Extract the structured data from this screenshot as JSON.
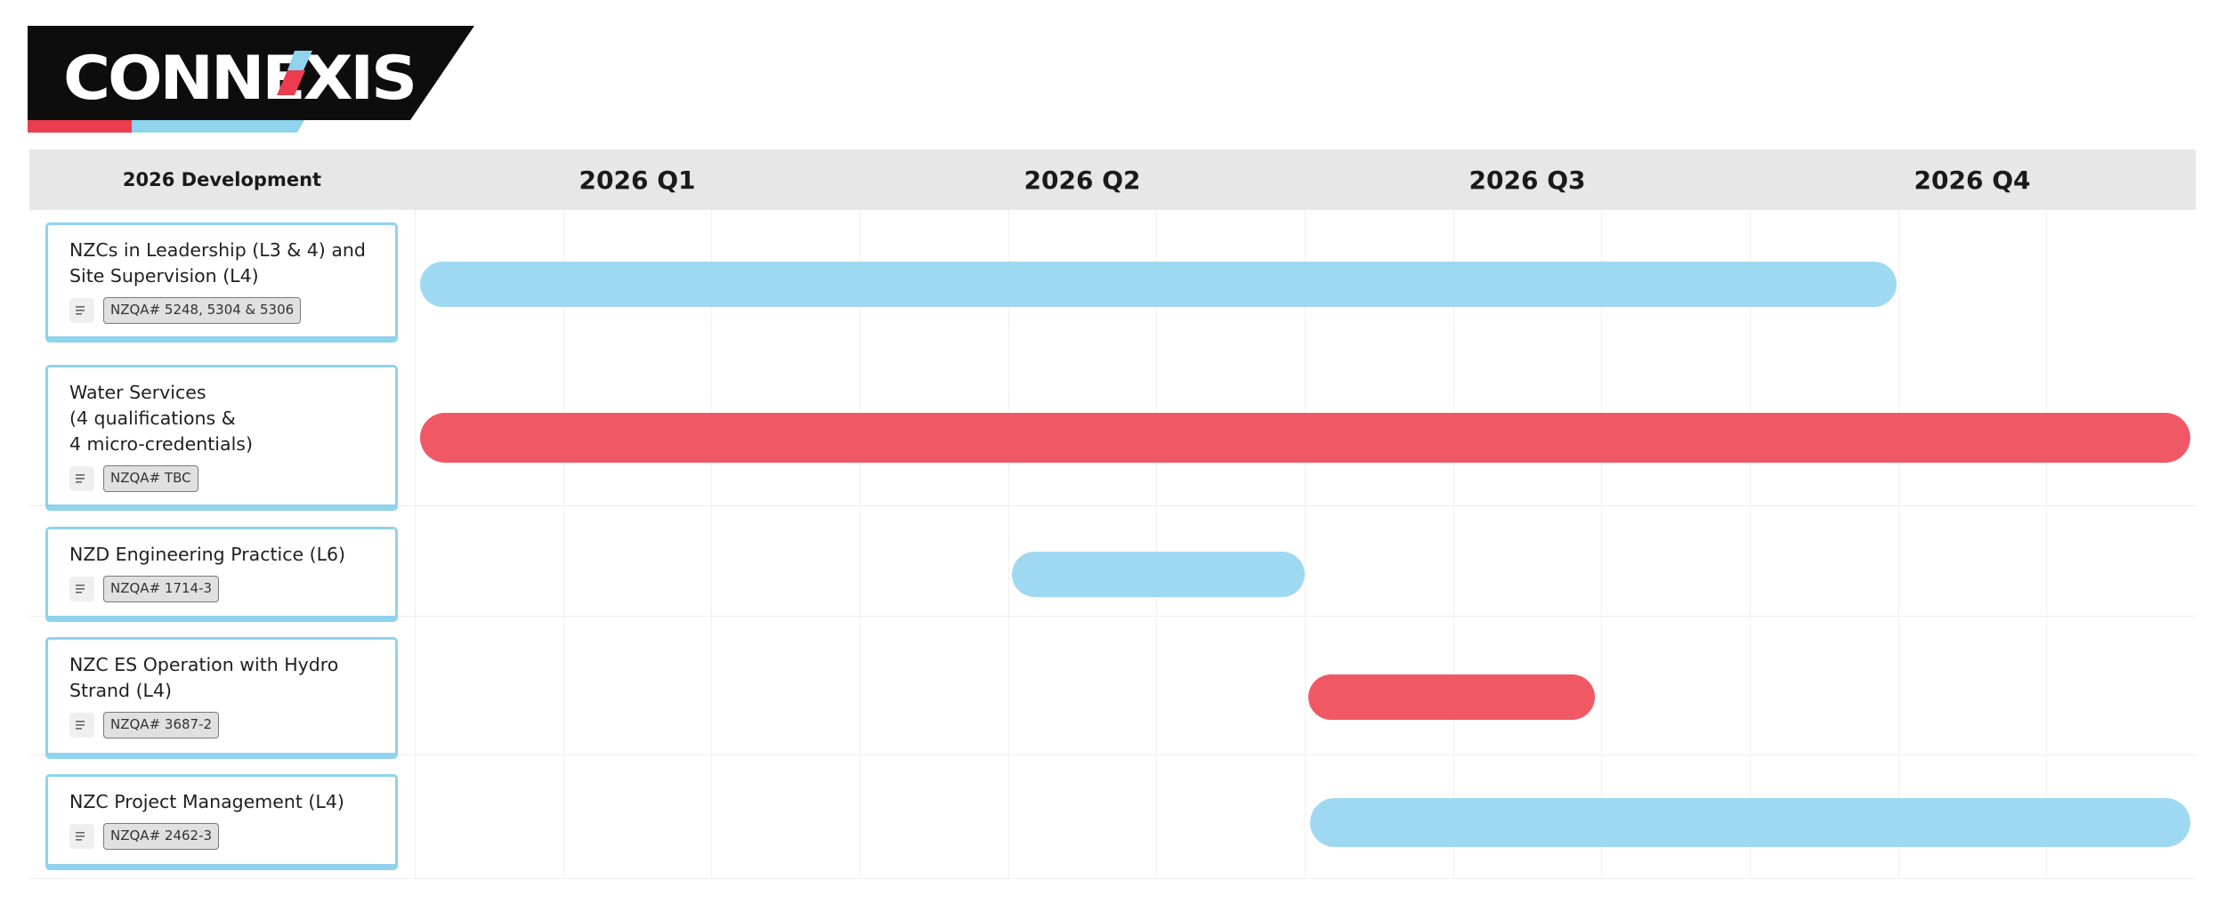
{
  "logo": {
    "text": "CONNEXIS"
  },
  "board": {
    "header_label": "2026 Development",
    "quarters": [
      "2026 Q1",
      "2026 Q2",
      "2026 Q3",
      "2026 Q4"
    ]
  },
  "colors": {
    "light_blue": "#9ed9f1",
    "red": "#f15866",
    "card_border": "#8fd3ec"
  },
  "tasks": [
    {
      "title": "NZCs in Leadership (L3 & 4) and Site Supervision (L4)",
      "badge": "NZQA# 5248, 5304 & 5306",
      "color": "light_blue",
      "icon": "description-icon"
    },
    {
      "title": "Water Services\n(4 qualifications &\n4 micro-credentials)",
      "badge": "NZQA# TBC",
      "color": "red",
      "icon": "description-icon"
    },
    {
      "title": "NZD Engineering Practice (L6)",
      "badge": "NZQA# 1714-3",
      "color": "light_blue",
      "icon": "description-icon"
    },
    {
      "title": "NZC ES Operation with Hydro Strand (L4)",
      "badge": "NZQA# 3687-2",
      "color": "red",
      "icon": "description-icon"
    },
    {
      "title": "NZC Project Management (L4)",
      "badge": "NZQA# 2462-3",
      "color": "light_blue",
      "icon": "description-icon"
    }
  ]
}
